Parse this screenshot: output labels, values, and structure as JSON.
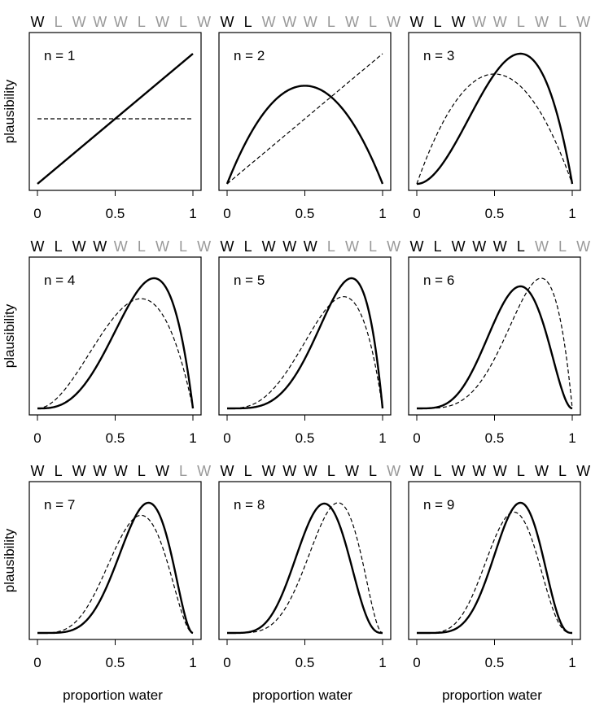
{
  "chart_data": {
    "type": "line",
    "layout": "3x3 grid of small multiples",
    "xlabel": "proportion water",
    "ylabel": "plausibility",
    "xlim": [
      0,
      1
    ],
    "x_ticks": [
      {
        "value": 0,
        "label": "0"
      },
      {
        "value": 0.5,
        "label": "0.5"
      },
      {
        "value": 1,
        "label": "1"
      }
    ],
    "y_axis_tick_labels": false,
    "grid": false,
    "sequence": [
      "W",
      "L",
      "W",
      "W",
      "W",
      "L",
      "W",
      "L",
      "W"
    ],
    "colors": {
      "observed_token": "#000000",
      "unobserved_token": "#999999",
      "line": "#000000"
    },
    "line_styles": {
      "current": "solid, thick",
      "previous": "dashed, thin"
    },
    "panels": [
      {
        "label": "n = 1",
        "observed": 1,
        "water": 1,
        "land": 0,
        "previous_water": 0,
        "previous_land": 0
      },
      {
        "label": "n = 2",
        "observed": 2,
        "water": 1,
        "land": 1,
        "previous_water": 1,
        "previous_land": 0
      },
      {
        "label": "n = 3",
        "observed": 3,
        "water": 2,
        "land": 1,
        "previous_water": 1,
        "previous_land": 1
      },
      {
        "label": "n = 4",
        "observed": 4,
        "water": 3,
        "land": 1,
        "previous_water": 2,
        "previous_land": 1
      },
      {
        "label": "n = 5",
        "observed": 5,
        "water": 4,
        "land": 1,
        "previous_water": 3,
        "previous_land": 1
      },
      {
        "label": "n = 6",
        "observed": 6,
        "water": 4,
        "land": 2,
        "previous_water": 4,
        "previous_land": 1
      },
      {
        "label": "n = 7",
        "observed": 7,
        "water": 5,
        "land": 2,
        "previous_water": 4,
        "previous_land": 2
      },
      {
        "label": "n = 8",
        "observed": 8,
        "water": 5,
        "land": 3,
        "previous_water": 5,
        "previous_land": 2
      },
      {
        "label": "n = 9",
        "observed": 9,
        "water": 6,
        "land": 3,
        "previous_water": 5,
        "previous_land": 3
      }
    ]
  }
}
